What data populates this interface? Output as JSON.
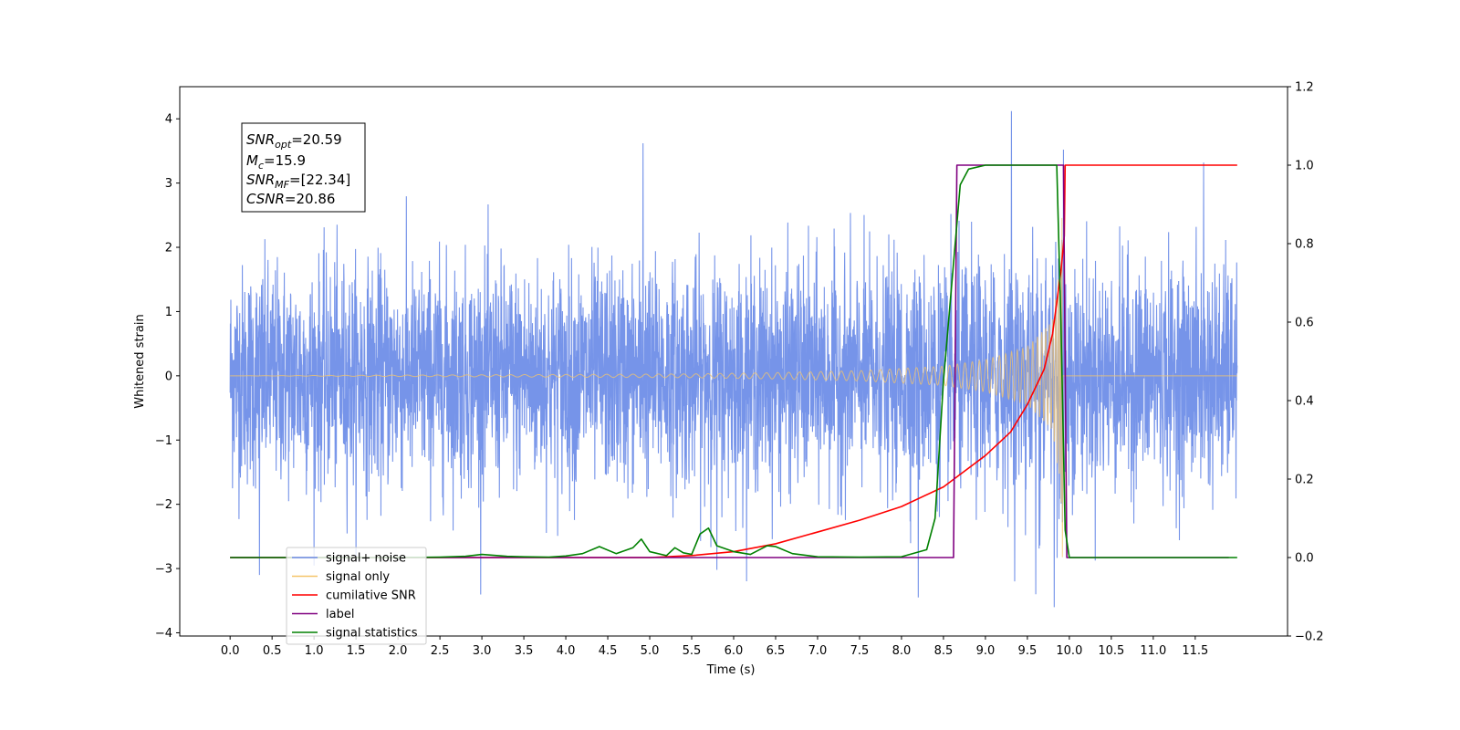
{
  "chart_data": {
    "type": "line",
    "title": "",
    "xlabel": "Time (s)",
    "ylabel": "Whitened strain",
    "xlim": [
      -0.6,
      12.6
    ],
    "ylim": [
      -4.05,
      4.5
    ],
    "y2lim": [
      -0.2,
      1.2
    ],
    "grid": false,
    "legend_position": "lower-left",
    "x_ticks": [
      "0.0",
      "0.5",
      "1.0",
      "1.5",
      "2.0",
      "2.5",
      "3.0",
      "3.5",
      "4.0",
      "4.5",
      "5.0",
      "5.5",
      "6.0",
      "6.5",
      "7.0",
      "7.5",
      "8.0",
      "8.5",
      "9.0",
      "9.5",
      "10.0",
      "10.5",
      "11.0",
      "11.5"
    ],
    "y_ticks": [
      "4",
      "3",
      "2",
      "1",
      "0",
      "−1",
      "−2",
      "−3",
      "−4"
    ],
    "y2_ticks": [
      "1.2",
      "1.0",
      "0.8",
      "0.6",
      "0.4",
      "0.2",
      "0.0",
      "−0.2"
    ],
    "annotation": {
      "snr_opt": {
        "sym": "SNR",
        "sub": "opt",
        "value": "=20.59"
      },
      "mc": {
        "sym": "M",
        "sub": "c",
        "value": "=15.9"
      },
      "snr_mf": {
        "sym": "SNR",
        "sub": "MF",
        "value": "=[22.34]"
      },
      "csnr": {
        "sym": "CSNR",
        "value": "=20.86"
      }
    },
    "series": [
      {
        "name": "signal+ noise",
        "axis": "left",
        "color": "#6f8ee8",
        "note_values": "dense whitened noise, std ~0.85, x from 0 to 12, with chirp added",
        "x_range": [
          0.0,
          12.0
        ],
        "noise_std": 0.85,
        "spikes": [
          {
            "x": 4.92,
            "y": 3.62
          },
          {
            "x": 9.31,
            "y": 4.12
          },
          {
            "x": 9.93,
            "y": 3.52
          },
          {
            "x": 11.6,
            "y": 3.32
          },
          {
            "x": 0.35,
            "y": -3.1
          },
          {
            "x": 5.8,
            "y": -3.02
          },
          {
            "x": 8.2,
            "y": -3.45
          },
          {
            "x": 9.6,
            "y": -3.4
          },
          {
            "x": 9.82,
            "y": -3.6
          }
        ]
      },
      {
        "name": "signal only",
        "axis": "left",
        "color": "#f5c56a",
        "chirp_end": 9.92,
        "amplitude_points": [
          [
            0.0,
            0.0
          ],
          [
            5.5,
            0.03
          ],
          [
            6.5,
            0.05
          ],
          [
            7.5,
            0.08
          ],
          [
            8.5,
            0.15
          ],
          [
            9.0,
            0.25
          ],
          [
            9.5,
            0.45
          ],
          [
            9.8,
            0.85
          ],
          [
            9.9,
            1.8
          ],
          [
            9.92,
            3.0
          ]
        ]
      },
      {
        "name": "cumilative SNR",
        "axis": "right",
        "color": "#ff0000",
        "x": [
          0.0,
          5.0,
          5.5,
          6.0,
          6.5,
          7.0,
          7.5,
          8.0,
          8.5,
          9.0,
          9.3,
          9.5,
          9.7,
          9.8,
          9.9,
          9.94,
          9.95,
          12.0
        ],
        "values": [
          0.0,
          0.0,
          0.005,
          0.015,
          0.035,
          0.065,
          0.095,
          0.13,
          0.18,
          0.26,
          0.32,
          0.39,
          0.48,
          0.57,
          0.73,
          0.82,
          1.0,
          1.0
        ]
      },
      {
        "name": "label",
        "axis": "right",
        "color": "#800080",
        "x": [
          0.0,
          8.62,
          8.66,
          9.93,
          9.97,
          11.9
        ],
        "values": [
          0.0,
          0.0,
          1.0,
          1.0,
          0.0,
          0.0
        ]
      },
      {
        "name": "signal statistics",
        "axis": "right",
        "color": "#008000",
        "x": [
          0.0,
          1.0,
          2.0,
          2.5,
          2.8,
          3.0,
          3.3,
          3.5,
          3.8,
          4.0,
          4.2,
          4.4,
          4.6,
          4.8,
          4.9,
          5.0,
          5.2,
          5.3,
          5.4,
          5.5,
          5.6,
          5.7,
          5.8,
          6.0,
          6.2,
          6.4,
          6.5,
          6.7,
          7.0,
          7.5,
          8.0,
          8.3,
          8.4,
          8.5,
          8.6,
          8.7,
          8.8,
          9.0,
          9.5,
          9.85,
          9.9,
          9.95,
          10.0,
          12.0
        ],
        "values": [
          0.0,
          0.0,
          0.0,
          0.001,
          0.003,
          0.008,
          0.003,
          0.002,
          0.001,
          0.004,
          0.01,
          0.028,
          0.01,
          0.025,
          0.047,
          0.015,
          0.005,
          0.025,
          0.012,
          0.008,
          0.06,
          0.075,
          0.03,
          0.015,
          0.008,
          0.03,
          0.028,
          0.01,
          0.002,
          0.001,
          0.002,
          0.02,
          0.1,
          0.45,
          0.7,
          0.95,
          0.99,
          1.0,
          1.0,
          1.0,
          0.6,
          0.07,
          0.0,
          0.0
        ]
      }
    ],
    "legend": [
      {
        "label": "signal+ noise",
        "color": "#6f8ee8"
      },
      {
        "label": "signal only",
        "color": "#f5c56a"
      },
      {
        "label": "cumilative SNR",
        "color": "#ff0000"
      },
      {
        "label": "label",
        "color": "#800080"
      },
      {
        "label": "signal statistics",
        "color": "#008000"
      }
    ]
  }
}
